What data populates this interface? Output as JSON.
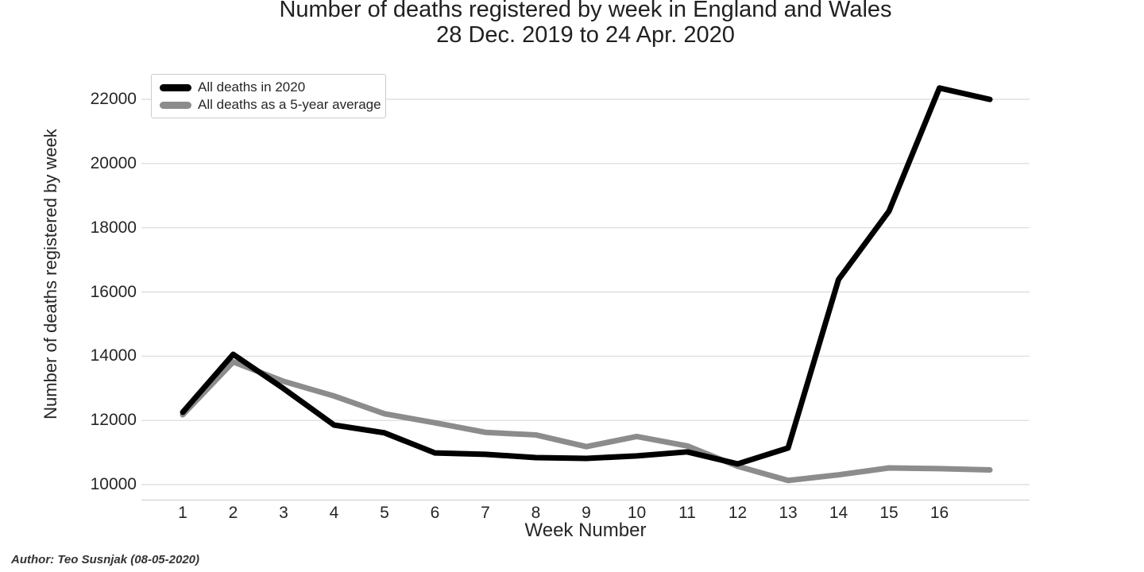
{
  "title": {
    "line1": "Number of deaths registered by week in England and Wales",
    "line2": "28 Dec. 2019 to 24 Apr. 2020"
  },
  "author_note": "Author: Teo Susnjak (08-05-2020)",
  "colors": {
    "line_2020": "#000000",
    "line_5yr_avg": "#8c8c8c",
    "grid": "#d9d9d9",
    "axis_line": "#d2d2d2",
    "text": "#262626",
    "legend_border": "#cccccc",
    "background": "#ffffff"
  },
  "chart_data": {
    "type": "line",
    "title": "Number of deaths registered by week in England and Wales",
    "subtitle": "28 Dec. 2019 to 24 Apr. 2020",
    "xlabel": "Week Number",
    "ylabel": "Number of deaths registered by week",
    "x": [
      1,
      2,
      3,
      4,
      5,
      6,
      7,
      8,
      9,
      10,
      11,
      12,
      13,
      14,
      15,
      16,
      17
    ],
    "x_tick_labels": [
      "1",
      "2",
      "3",
      "4",
      "5",
      "6",
      "7",
      "8",
      "9",
      "10",
      "11",
      "12",
      "13",
      "14",
      "15",
      "16"
    ],
    "y_ticks": [
      10000,
      12000,
      14000,
      16000,
      18000,
      20000,
      22000
    ],
    "ylim": [
      9500,
      23400
    ],
    "xlim": [
      0.2,
      17.8
    ],
    "grid": "horizontal",
    "legend_position": "upper-left",
    "series": [
      {
        "name": "All deaths in 2020",
        "color": "#000000",
        "values": [
          12254,
          14058,
          12990,
          11856,
          11612,
          10986,
          10944,
          10841,
          10816,
          10895,
          11019,
          10645,
          11141,
          16387,
          18516,
          22351,
          21997
        ]
      },
      {
        "name": "All deaths as a 5-year average",
        "color": "#8c8c8c",
        "values": [
          12175,
          13822,
          13216,
          12760,
          12206,
          11925,
          11627,
          11548,
          11183,
          11498,
          11205,
          10573,
          10130,
          10305,
          10520,
          10497,
          10458
        ]
      }
    ]
  }
}
